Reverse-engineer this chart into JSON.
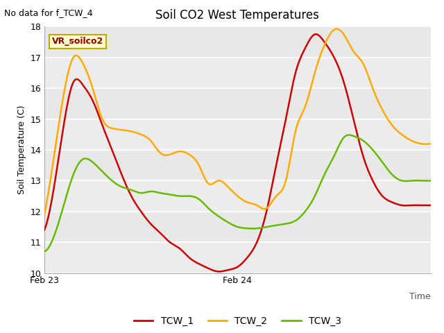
{
  "title": "Soil CO2 West Temperatures",
  "ylabel": "Soil Temperature (C)",
  "no_data_text": "No data for f_TCW_4",
  "annotation_text": "VR_soilco2",
  "ylim": [
    10.0,
    18.0
  ],
  "yticks": [
    10.0,
    11.0,
    12.0,
    13.0,
    14.0,
    15.0,
    16.0,
    17.0,
    18.0
  ],
  "background_color": "#e8e8e8",
  "stripe_color": "#d8d8d8",
  "legend_entries": [
    "TCW_1",
    "TCW_2",
    "TCW_3"
  ],
  "line_colors": [
    "#cc0000",
    "#ffaa00",
    "#66bb00"
  ],
  "TCW_1": {
    "x": [
      0,
      1,
      2,
      3,
      4,
      5,
      6,
      7,
      8,
      9,
      10,
      11,
      12,
      13,
      14,
      15,
      16,
      17,
      18,
      19,
      20,
      21,
      22,
      23,
      24,
      25,
      26,
      27,
      28,
      29,
      30,
      31,
      32,
      33,
      34,
      35,
      36,
      37,
      38,
      39,
      40
    ],
    "y": [
      11.4,
      12.8,
      14.8,
      16.2,
      16.1,
      15.6,
      14.8,
      14.0,
      13.2,
      12.5,
      12.0,
      11.6,
      11.3,
      11.0,
      10.8,
      10.5,
      10.3,
      10.15,
      10.05,
      10.1,
      10.2,
      10.5,
      11.0,
      12.0,
      13.5,
      15.0,
      16.5,
      17.3,
      17.75,
      17.5,
      17.0,
      16.2,
      15.0,
      13.8,
      13.0,
      12.5,
      12.3,
      12.2,
      12.2,
      12.2,
      12.2
    ]
  },
  "TCW_2": {
    "x": [
      0,
      1,
      2,
      3,
      4,
      5,
      6,
      7,
      8,
      9,
      10,
      11,
      12,
      13,
      14,
      15,
      16,
      17,
      18,
      19,
      20,
      21,
      22,
      23,
      24,
      25,
      26,
      27,
      28,
      29,
      30,
      31,
      32,
      33,
      34,
      35,
      36,
      37,
      38,
      39,
      40
    ],
    "y": [
      11.9,
      13.8,
      15.8,
      17.0,
      16.8,
      16.0,
      15.0,
      14.7,
      14.65,
      14.6,
      14.5,
      14.3,
      13.9,
      13.85,
      13.95,
      13.85,
      13.5,
      12.9,
      13.0,
      12.8,
      12.5,
      12.3,
      12.2,
      12.1,
      12.5,
      13.0,
      14.6,
      15.4,
      16.5,
      17.4,
      17.9,
      17.75,
      17.2,
      16.8,
      16.0,
      15.3,
      14.8,
      14.5,
      14.3,
      14.2,
      14.2
    ]
  },
  "TCW_3": {
    "x": [
      0,
      1,
      2,
      3,
      4,
      5,
      6,
      7,
      8,
      9,
      10,
      11,
      12,
      13,
      14,
      15,
      16,
      17,
      18,
      19,
      20,
      21,
      22,
      23,
      24,
      25,
      26,
      27,
      28,
      29,
      30,
      31,
      32,
      33,
      34,
      35,
      36,
      37,
      38,
      39,
      40
    ],
    "y": [
      10.7,
      11.2,
      12.2,
      13.2,
      13.7,
      13.6,
      13.3,
      13.0,
      12.8,
      12.7,
      12.6,
      12.65,
      12.6,
      12.55,
      12.5,
      12.5,
      12.4,
      12.1,
      11.85,
      11.65,
      11.5,
      11.45,
      11.45,
      11.5,
      11.55,
      11.6,
      11.7,
      12.0,
      12.5,
      13.2,
      13.8,
      14.4,
      14.45,
      14.3,
      14.0,
      13.6,
      13.2,
      13.0,
      13.0,
      13.0,
      13.0
    ]
  },
  "xmin": 0,
  "xmax": 40,
  "feb23_x": 0,
  "feb24_x": 20
}
